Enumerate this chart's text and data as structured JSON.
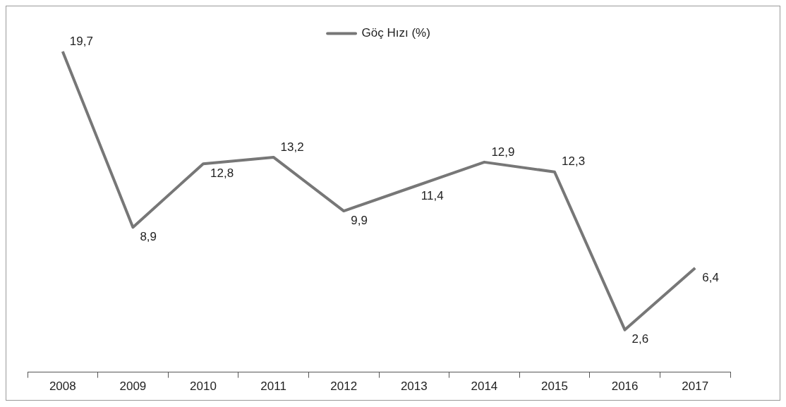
{
  "chart_data": {
    "type": "line",
    "categories": [
      "2008",
      "2009",
      "2010",
      "2011",
      "2012",
      "2013",
      "2014",
      "2015",
      "2016",
      "2017"
    ],
    "series": [
      {
        "name": "Göç Hızı (%)",
        "color": "#777777",
        "values": [
          19.7,
          8.9,
          12.8,
          13.2,
          9.9,
          11.4,
          12.9,
          12.3,
          2.6,
          6.4
        ],
        "value_labels": [
          "19,7",
          "8,9",
          "12,8",
          "13,2",
          "9,9",
          "11,4",
          "12,9",
          "12,3",
          "2,6",
          "6,4"
        ]
      }
    ],
    "legend": "top",
    "grid": false,
    "marker": "none",
    "line_style": "solid"
  }
}
